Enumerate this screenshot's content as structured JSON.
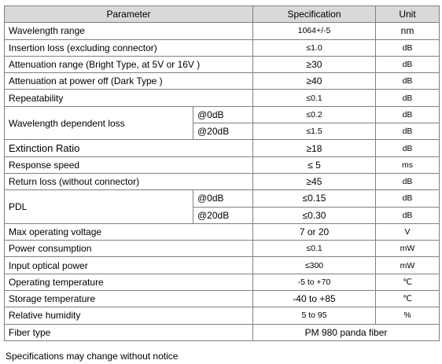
{
  "header": {
    "parameter": "Parameter",
    "specification": "Specification",
    "unit": "Unit"
  },
  "rows": {
    "wavelength_range": {
      "param": "Wavelength range",
      "spec": "1064+/-5",
      "unit": "nm"
    },
    "insertion_loss": {
      "param": "Insertion loss (excluding connector)",
      "spec": "≤1.0",
      "unit": "dB"
    },
    "attenuation_range": {
      "param": "Attenuation range (Bright Type, at 5V or 16V )",
      "spec": "≥30",
      "unit": "dB"
    },
    "attenuation_power_off": {
      "param": "Attenuation at power off (Dark Type )",
      "spec": "≥40",
      "unit": "dB"
    },
    "repeatability": {
      "param": "Repeatability",
      "spec": "≤0.1",
      "unit": "dB"
    },
    "wdl": {
      "param": "Wavelength dependent loss",
      "sub": [
        {
          "cond": "@0dB",
          "spec": "≤0.2",
          "unit": "dB"
        },
        {
          "cond": "@20dB",
          "spec": "≤1.5",
          "unit": "dB"
        }
      ]
    },
    "extinction_ratio": {
      "param": "Extinction Ratio",
      "spec": "≥18",
      "unit": "dB"
    },
    "response_speed": {
      "param": "Response speed",
      "spec": "≤ 5",
      "unit": "ms"
    },
    "return_loss": {
      "param": "Return loss (without connector)",
      "spec": "≥45",
      "unit": "dB"
    },
    "pdl": {
      "param": "PDL",
      "sub": [
        {
          "cond": "@0dB",
          "spec": "≤0.15",
          "unit": "dB"
        },
        {
          "cond": "@20dB",
          "spec": "≤0.30",
          "unit": "dB"
        }
      ]
    },
    "max_voltage": {
      "param": "Max operating voltage",
      "spec": "7 or 20",
      "unit": "V"
    },
    "power_consumption": {
      "param": "Power consumption",
      "spec": "≤0.1",
      "unit": "mW"
    },
    "input_optical_power": {
      "param": "Input optical power",
      "spec": "≤300",
      "unit": "mW"
    },
    "operating_temp": {
      "param": "Operating temperature",
      "spec": "-5 to +70",
      "unit": "℃"
    },
    "storage_temp": {
      "param": "Storage temperature",
      "spec": "-40 to +85",
      "unit": "℃"
    },
    "humidity": {
      "param": "Relative humidity",
      "spec": "5 to 95",
      "unit": "%"
    },
    "fiber_type": {
      "param": "Fiber type",
      "spec": "PM 980 panda fiber"
    }
  },
  "note": "Specifications may change without notice"
}
